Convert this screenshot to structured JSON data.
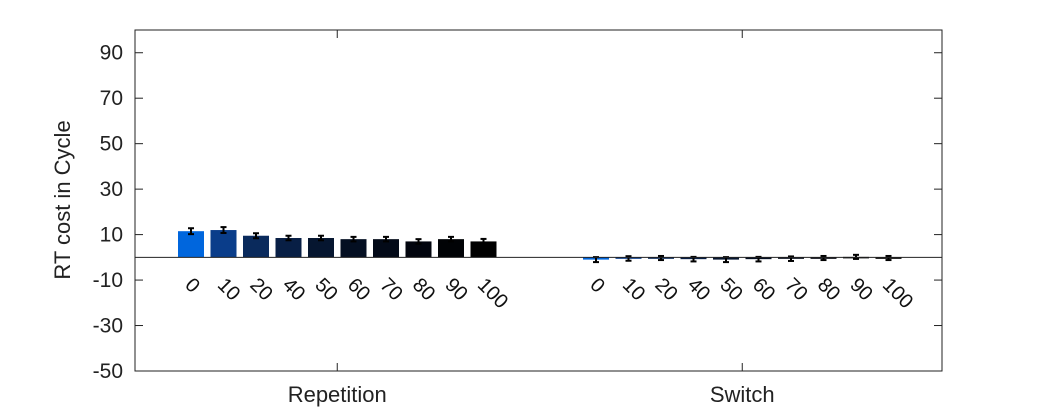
{
  "chart_data": {
    "type": "bar",
    "ylabel": "RT cost in Cycle",
    "ylim": [
      -50,
      100
    ],
    "yticks": [
      -50,
      -30,
      -10,
      10,
      30,
      50,
      70,
      90
    ],
    "groups": [
      {
        "name": "Repetition",
        "categories": [
          "0",
          "10",
          "20",
          "40",
          "50",
          "60",
          "70",
          "80",
          "90",
          "100"
        ],
        "values": [
          11.5,
          12,
          9.5,
          8.5,
          8.5,
          8,
          8,
          7,
          8,
          7
        ],
        "errors": [
          1.3,
          1.3,
          1.1,
          1.0,
          1.0,
          1.0,
          1.0,
          1.0,
          1.0,
          1.1
        ],
        "colors": [
          "#0066dd",
          "#0a3d8a",
          "#0a2a5c",
          "#081f45",
          "#061630",
          "#040f22",
          "#030a18",
          "#02050e",
          "#010306",
          "#000000"
        ]
      },
      {
        "name": "Switch",
        "categories": [
          "0",
          "10",
          "20",
          "40",
          "50",
          "60",
          "70",
          "80",
          "90",
          "100"
        ],
        "values": [
          -1,
          -0.5,
          -0.3,
          -0.8,
          -1,
          -0.8,
          -0.6,
          -0.3,
          0.2,
          -0.3
        ],
        "errors": [
          1.1,
          1.0,
          0.9,
          1.0,
          1.1,
          1.0,
          1.0,
          0.9,
          0.9,
          0.9
        ],
        "colors": [
          "#0066dd",
          "#0a3d8a",
          "#0a2a5c",
          "#081f45",
          "#061630",
          "#040f22",
          "#030a18",
          "#02050e",
          "#010306",
          "#000000"
        ]
      }
    ]
  }
}
